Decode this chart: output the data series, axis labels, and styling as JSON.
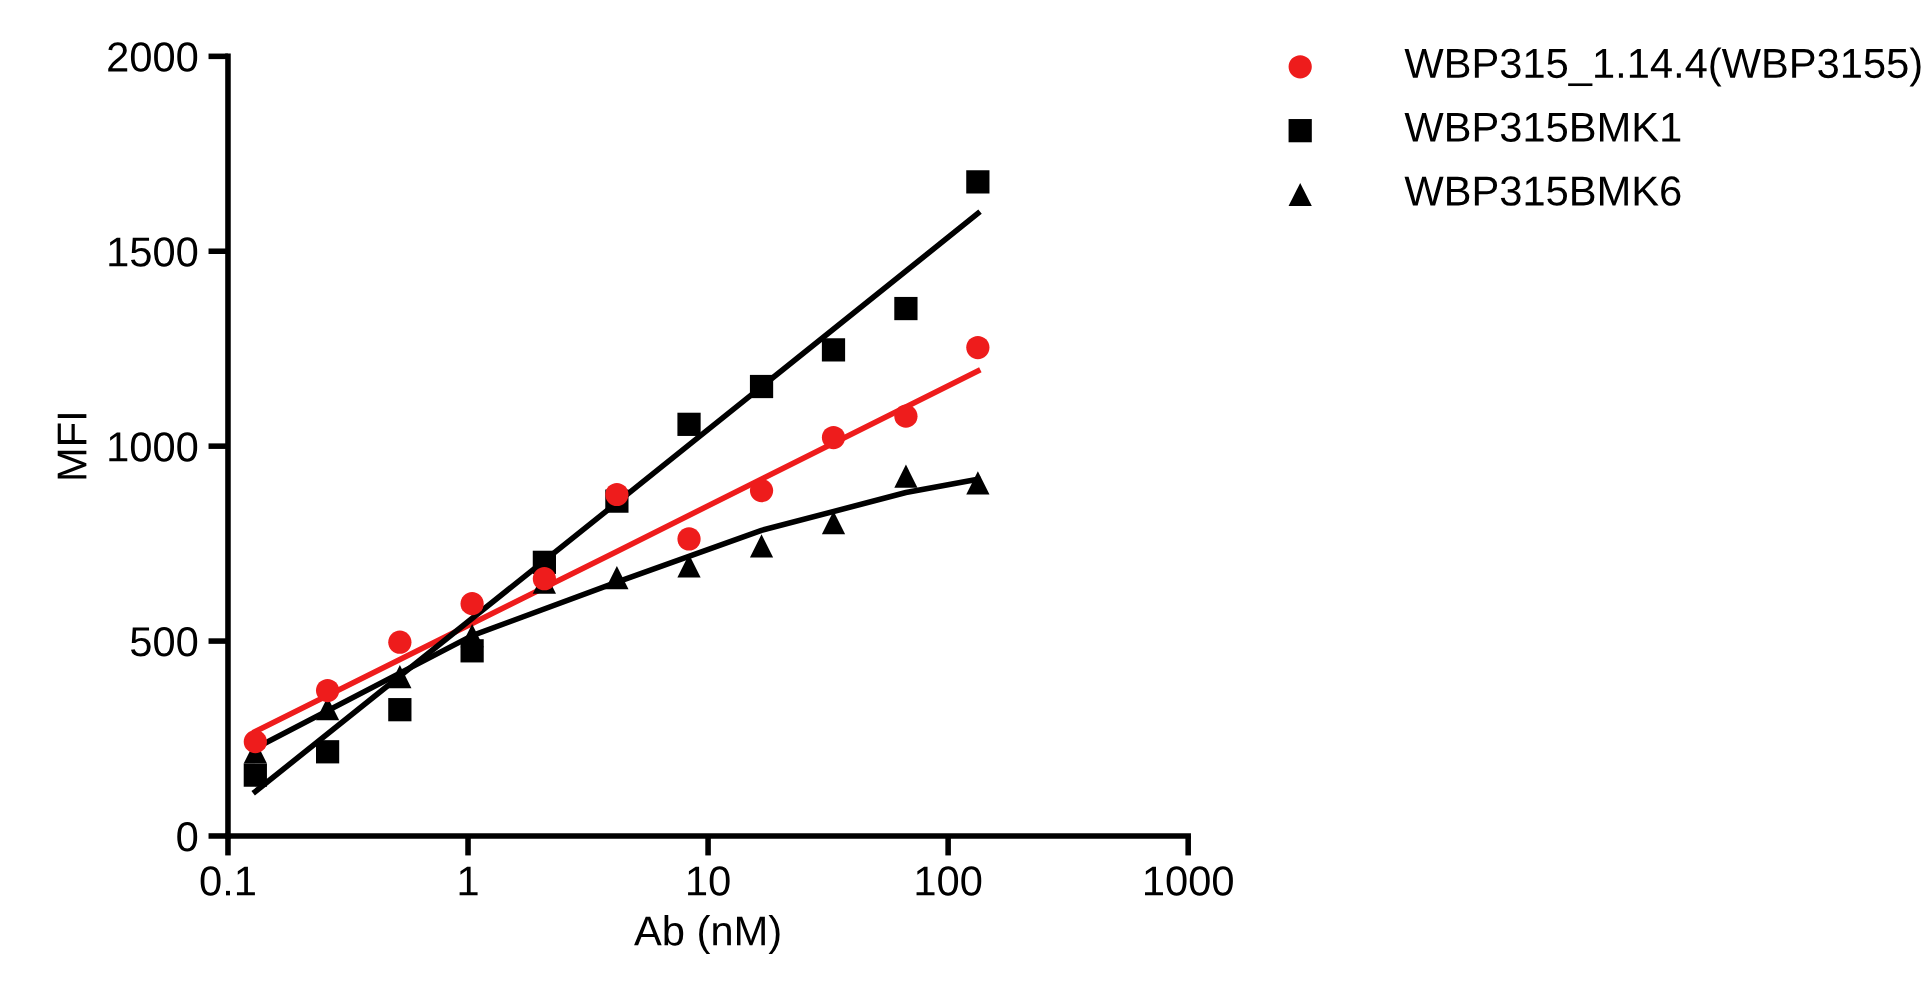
{
  "chart_data": {
    "type": "scatter",
    "xlabel": "Ab (nM)",
    "ylabel": "MFI",
    "log": "x",
    "xlim": [
      0.1,
      1000
    ],
    "xticks": [
      0.1,
      1,
      10,
      100,
      1000
    ],
    "ylim": [
      0,
      2000
    ],
    "yticks": [
      0,
      500,
      1000,
      1500,
      2000
    ],
    "grid": false,
    "legend": "top right",
    "x": [
      0.13,
      0.26,
      0.52,
      1.04,
      2.08,
      4.17,
      8.33,
      16.7,
      33.3,
      66.7,
      133
    ],
    "series": [
      {
        "name": "WBP315_1.14.4(WBP3155)",
        "color": "#ee1c1c",
        "marker": "circle",
        "values": [
          242,
          373,
          497,
          596,
          660,
          876,
          762,
          886,
          1022,
          1077,
          1253
        ]
      },
      {
        "name": "WBP315BMK1",
        "color": "#000000",
        "marker": "square",
        "values": [
          156,
          216,
          324,
          475,
          702,
          859,
          1056,
          1153,
          1247,
          1353,
          1678
        ]
      },
      {
        "name": "WBP315BMK6",
        "color": "#000000",
        "marker": "triangle",
        "values": [
          216,
          327,
          409,
          514,
          651,
          663,
          693,
          744,
          804,
          923,
          906
        ]
      },
      {
        "type": "line",
        "color": "#ee1c1c",
        "marker": "none",
        "x": [
          0.13,
          4.17,
          133
        ],
        "values": [
          268,
          730,
          1193
        ]
      },
      {
        "type": "line",
        "color": "#000000",
        "marker": "none",
        "x": [
          0.13,
          4.17,
          133
        ],
        "values": [
          114,
          855,
          1597
        ]
      },
      {
        "type": "line",
        "color": "#000000",
        "marker": "none",
        "x": [
          0.13,
          1.04,
          4.17,
          16.7,
          66.7,
          133
        ],
        "values": [
          225,
          514,
          651,
          784,
          881,
          915
        ]
      }
    ]
  }
}
